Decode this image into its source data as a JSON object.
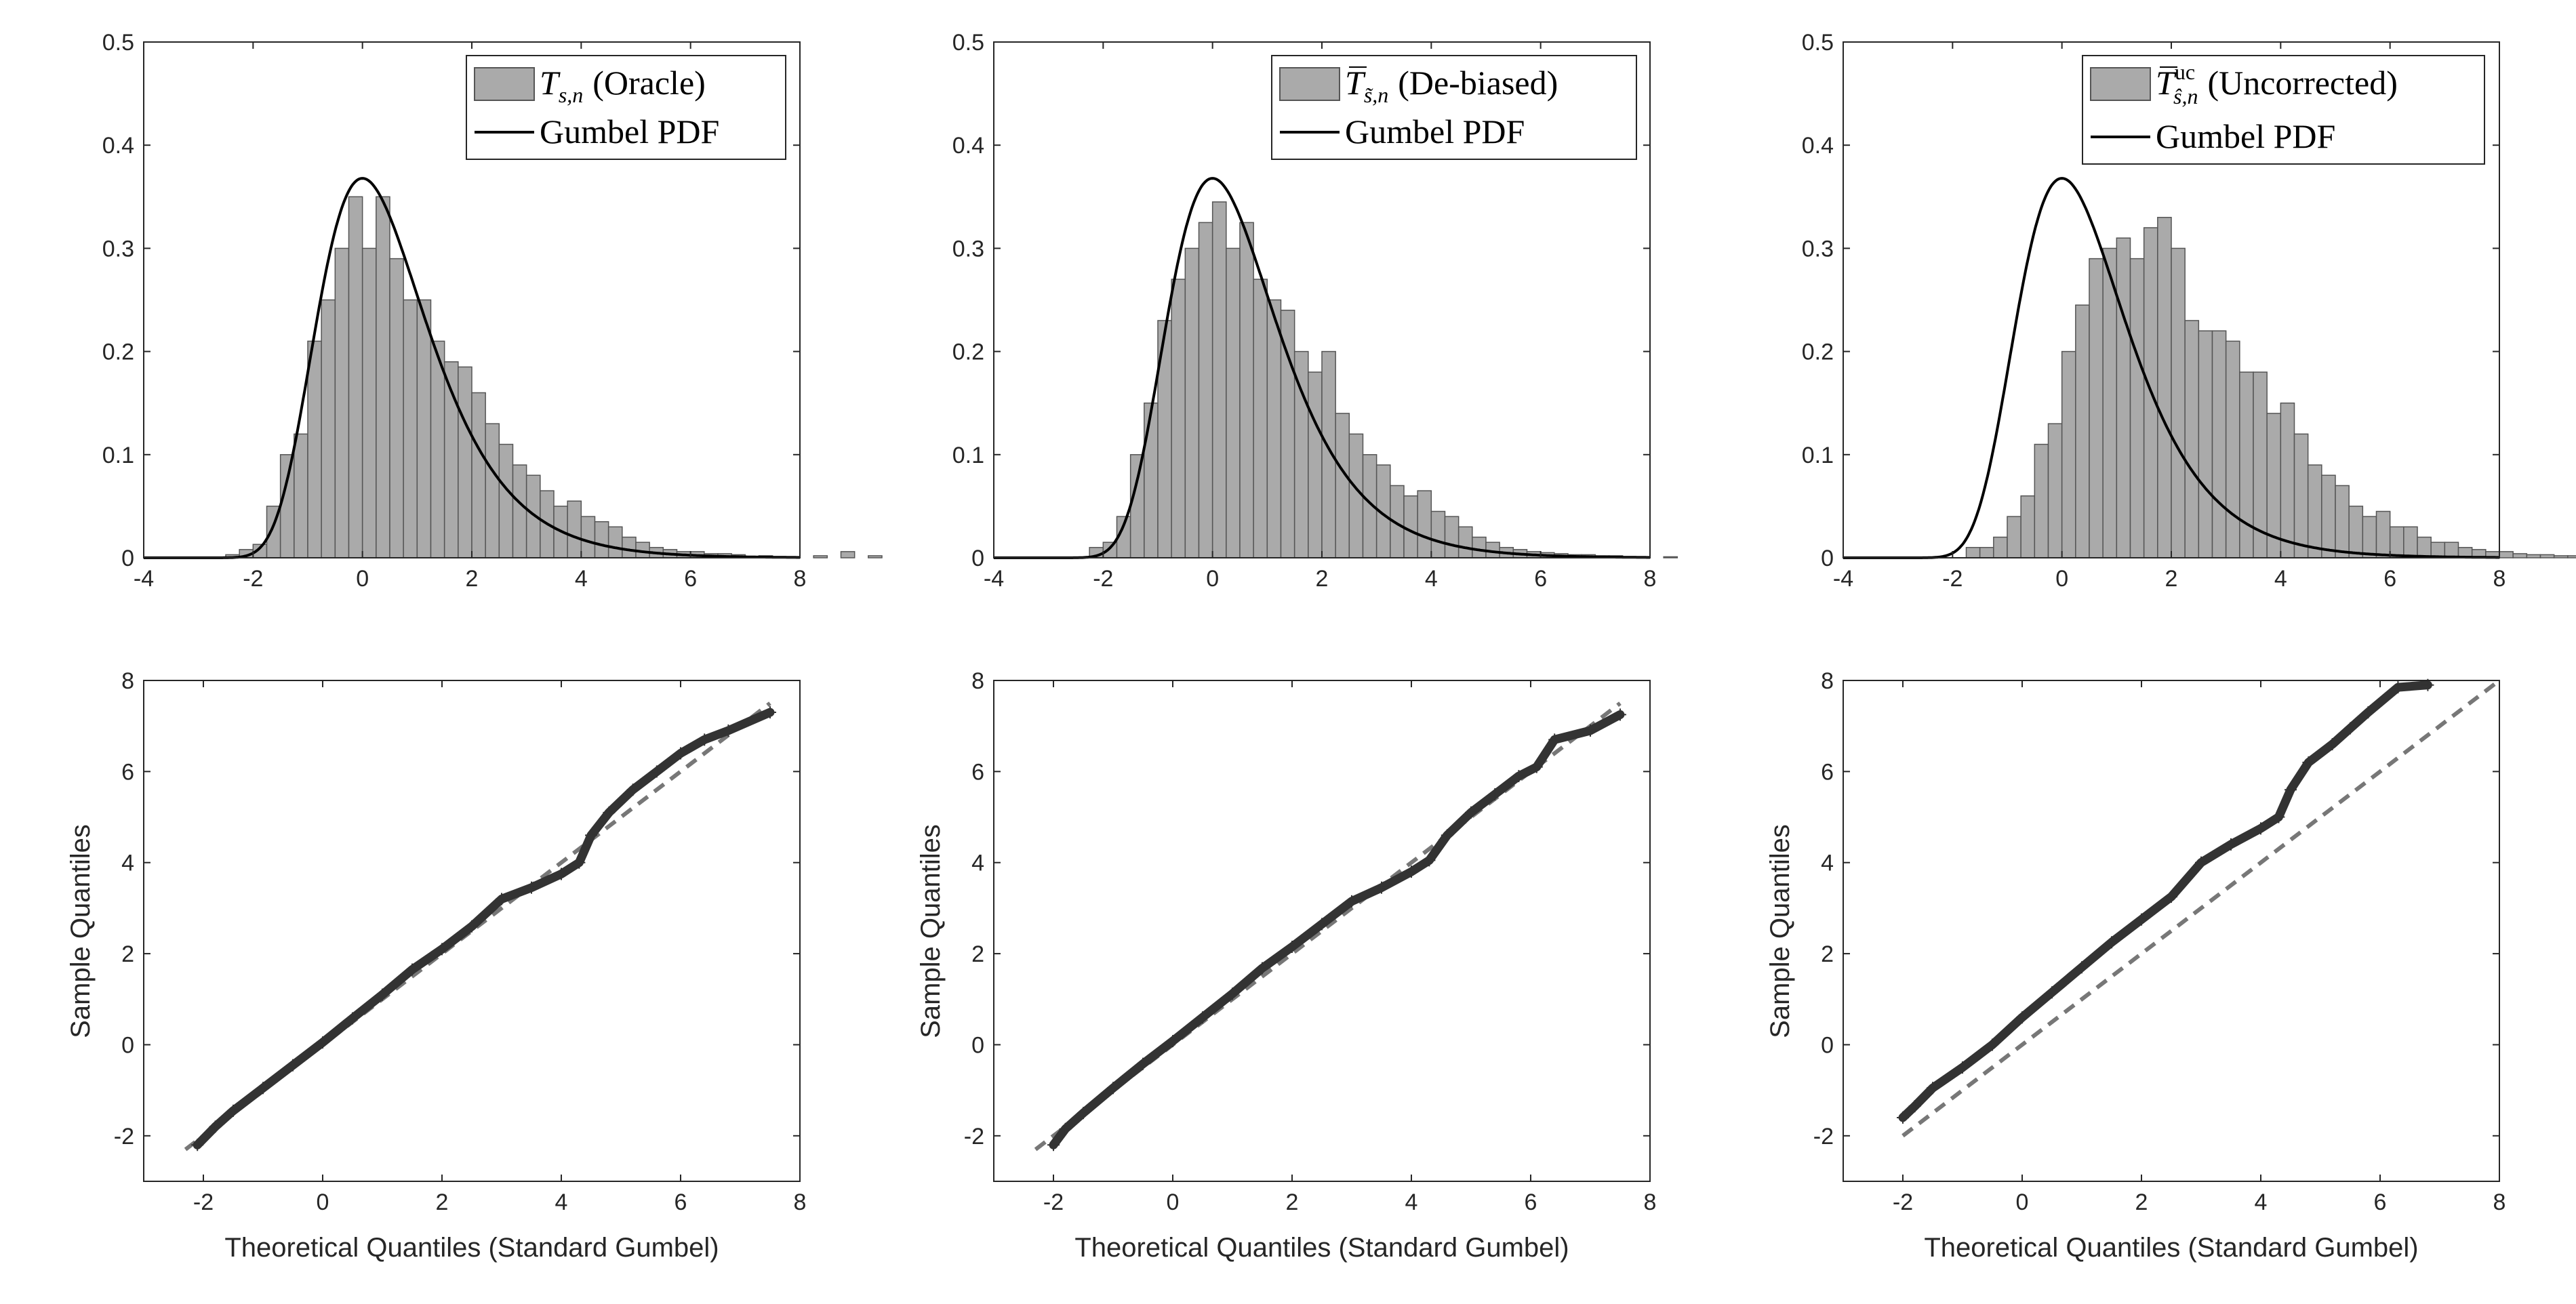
{
  "colors": {
    "bar_fill": "#aaaaaa",
    "bar_edge": "#555555",
    "pdf_line": "#000000",
    "ref_line": "#777777",
    "marker": "#333333",
    "axis": "#262626"
  },
  "panel_labels": {
    "oracle": {
      "main": "T",
      "sub": "s,n",
      "suffix": "(Oracle)"
    },
    "debiased": {
      "main": "T",
      "sub": "s̃,n",
      "suffix": "(De-biased)"
    },
    "uncorrected": {
      "main": "T",
      "sub": "ŝ,n",
      "sup": "uc",
      "suffix": "(Uncorrected)"
    },
    "pdf_label": "Gumbel PDF",
    "qq_xlabel": "Theoretical Quantiles (Standard Gumbel)",
    "qq_ylabel": "Sample Quantiles"
  },
  "chart_data": [
    {
      "id": "hist-oracle",
      "type": "bar",
      "title": "",
      "xlabel": "",
      "ylabel": "",
      "xlim": [
        -4,
        8
      ],
      "ylim": [
        0,
        0.5
      ],
      "xticks": [
        -4,
        -2,
        0,
        2,
        4,
        6,
        8
      ],
      "yticks": [
        0,
        0.1,
        0.2,
        0.3,
        0.4,
        0.5
      ],
      "bin_width": 0.25,
      "bin_start": -2.5,
      "values": [
        0.003,
        0.008,
        0.013,
        0.05,
        0.1,
        0.12,
        0.21,
        0.25,
        0.3,
        0.35,
        0.3,
        0.35,
        0.29,
        0.25,
        0.25,
        0.21,
        0.19,
        0.185,
        0.16,
        0.13,
        0.11,
        0.09,
        0.08,
        0.065,
        0.05,
        0.055,
        0.04,
        0.035,
        0.03,
        0.02,
        0.015,
        0.01,
        0.008,
        0.006,
        0.006,
        0.004,
        0.004,
        0.003,
        0.0,
        0.002,
        0.0,
        0.0,
        0.0,
        0.002,
        0.0,
        0.006,
        0.0,
        0.002
      ],
      "series": [
        {
          "name": "T_{s,n} (Oracle)"
        },
        {
          "name": "Gumbel PDF",
          "curve": "gumbel_pdf",
          "mu": 0,
          "beta": 1
        }
      ],
      "legend_position": "top-right",
      "grid": false
    },
    {
      "id": "hist-debiased",
      "type": "bar",
      "title": "",
      "xlabel": "",
      "ylabel": "",
      "xlim": [
        -4,
        8
      ],
      "ylim": [
        0,
        0.5
      ],
      "xticks": [
        -4,
        -2,
        0,
        2,
        4,
        6,
        8
      ],
      "yticks": [
        0,
        0.1,
        0.2,
        0.3,
        0.4,
        0.5
      ],
      "bin_width": 0.25,
      "bin_start": -2.25,
      "values": [
        0.01,
        0.015,
        0.04,
        0.1,
        0.15,
        0.23,
        0.27,
        0.3,
        0.325,
        0.345,
        0.3,
        0.325,
        0.27,
        0.25,
        0.24,
        0.2,
        0.18,
        0.2,
        0.14,
        0.12,
        0.1,
        0.09,
        0.07,
        0.06,
        0.065,
        0.045,
        0.04,
        0.03,
        0.02,
        0.015,
        0.01,
        0.008,
        0.006,
        0.005,
        0.004,
        0.003,
        0.003,
        0.002,
        0.002,
        0.001,
        0.001,
        0.0,
        0.001,
        0.0
      ],
      "series": [
        {
          "name": "T̃_{s̃,n} (De-biased)"
        },
        {
          "name": "Gumbel PDF",
          "curve": "gumbel_pdf",
          "mu": 0,
          "beta": 1
        }
      ],
      "legend_position": "top-right",
      "grid": false
    },
    {
      "id": "hist-uncorrected",
      "type": "bar",
      "title": "",
      "xlabel": "",
      "ylabel": "",
      "xlim": [
        -4,
        8
      ],
      "ylim": [
        0,
        0.5
      ],
      "xticks": [
        -4,
        -2,
        0,
        2,
        4,
        6,
        8
      ],
      "yticks": [
        0,
        0.1,
        0.2,
        0.3,
        0.4,
        0.5
      ],
      "bin_width": 0.25,
      "bin_start": -1.75,
      "values": [
        0.01,
        0.01,
        0.02,
        0.04,
        0.06,
        0.11,
        0.13,
        0.2,
        0.245,
        0.29,
        0.3,
        0.31,
        0.29,
        0.32,
        0.33,
        0.3,
        0.23,
        0.22,
        0.22,
        0.21,
        0.18,
        0.18,
        0.14,
        0.15,
        0.12,
        0.09,
        0.08,
        0.07,
        0.05,
        0.04,
        0.045,
        0.03,
        0.03,
        0.02,
        0.015,
        0.015,
        0.01,
        0.008,
        0.006,
        0.006,
        0.004,
        0.003,
        0.003,
        0.002,
        0.002,
        0.002,
        0.002,
        0.002
      ],
      "series": [
        {
          "name": "T̃^{uc}_{ŝ,n} (Uncorrected)"
        },
        {
          "name": "Gumbel PDF",
          "curve": "gumbel_pdf",
          "mu": 0,
          "beta": 1
        }
      ],
      "legend_position": "top-right",
      "grid": false
    },
    {
      "id": "qq-oracle",
      "type": "scatter",
      "title": "",
      "xlabel": "Theoretical Quantiles (Standard Gumbel)",
      "ylabel": "Sample Quantiles",
      "xlim": [
        -3,
        8
      ],
      "ylim": [
        -3,
        8
      ],
      "xticks": [
        -2,
        0,
        2,
        4,
        6,
        8
      ],
      "yticks": [
        -2,
        0,
        2,
        4,
        6,
        8
      ],
      "points": [
        [
          -2.1,
          -2.2
        ],
        [
          -1.8,
          -1.8
        ],
        [
          -1.5,
          -1.45
        ],
        [
          -1.0,
          -0.95
        ],
        [
          -0.5,
          -0.45
        ],
        [
          0.0,
          0.05
        ],
        [
          0.5,
          0.58
        ],
        [
          1.0,
          1.1
        ],
        [
          1.5,
          1.65
        ],
        [
          2.0,
          2.1
        ],
        [
          2.5,
          2.6
        ],
        [
          3.0,
          3.2
        ],
        [
          3.5,
          3.45
        ],
        [
          4.0,
          3.75
        ],
        [
          4.3,
          4.0
        ],
        [
          4.5,
          4.6
        ],
        [
          4.8,
          5.1
        ],
        [
          5.2,
          5.6
        ],
        [
          5.6,
          6.0
        ],
        [
          6.0,
          6.4
        ],
        [
          6.4,
          6.7
        ],
        [
          6.8,
          6.9
        ],
        [
          7.5,
          7.3
        ]
      ],
      "reference_line": {
        "from": [
          -2.3,
          -2.3
        ],
        "to": [
          7.5,
          7.5
        ]
      },
      "grid": false
    },
    {
      "id": "qq-debiased",
      "type": "scatter",
      "title": "",
      "xlabel": "Theoretical Quantiles (Standard Gumbel)",
      "ylabel": "Sample Quantiles",
      "xlim": [
        -3,
        8
      ],
      "ylim": [
        -3,
        8
      ],
      "xticks": [
        -2,
        0,
        2,
        4,
        6,
        8
      ],
      "yticks": [
        -2,
        0,
        2,
        4,
        6,
        8
      ],
      "points": [
        [
          -2.0,
          -2.2
        ],
        [
          -1.8,
          -1.85
        ],
        [
          -1.5,
          -1.5
        ],
        [
          -1.0,
          -0.95
        ],
        [
          -0.5,
          -0.42
        ],
        [
          0.0,
          0.08
        ],
        [
          0.5,
          0.6
        ],
        [
          1.0,
          1.12
        ],
        [
          1.5,
          1.68
        ],
        [
          2.0,
          2.15
        ],
        [
          2.5,
          2.65
        ],
        [
          3.0,
          3.15
        ],
        [
          3.5,
          3.45
        ],
        [
          4.0,
          3.8
        ],
        [
          4.3,
          4.05
        ],
        [
          4.6,
          4.6
        ],
        [
          5.0,
          5.1
        ],
        [
          5.4,
          5.5
        ],
        [
          5.8,
          5.9
        ],
        [
          6.1,
          6.1
        ],
        [
          6.4,
          6.7
        ],
        [
          7.0,
          6.9
        ],
        [
          7.5,
          7.25
        ]
      ],
      "reference_line": {
        "from": [
          -2.3,
          -2.3
        ],
        "to": [
          7.5,
          7.5
        ]
      },
      "grid": false
    },
    {
      "id": "qq-uncorrected",
      "type": "scatter",
      "title": "",
      "xlabel": "Theoretical Quantiles (Standard Gumbel)",
      "ylabel": "Sample Quantiles",
      "xlim": [
        -3,
        8
      ],
      "ylim": [
        -3,
        8
      ],
      "xticks": [
        -2,
        0,
        2,
        4,
        6,
        8
      ],
      "yticks": [
        -2,
        0,
        2,
        4,
        6,
        8
      ],
      "points": [
        [
          -2.0,
          -1.6
        ],
        [
          -1.8,
          -1.35
        ],
        [
          -1.5,
          -0.95
        ],
        [
          -1.0,
          -0.5
        ],
        [
          -0.5,
          0.0
        ],
        [
          0.0,
          0.6
        ],
        [
          0.5,
          1.15
        ],
        [
          1.0,
          1.7
        ],
        [
          1.5,
          2.25
        ],
        [
          2.0,
          2.75
        ],
        [
          2.5,
          3.25
        ],
        [
          3.0,
          4.0
        ],
        [
          3.5,
          4.4
        ],
        [
          4.0,
          4.75
        ],
        [
          4.3,
          5.0
        ],
        [
          4.5,
          5.6
        ],
        [
          4.8,
          6.2
        ],
        [
          5.2,
          6.6
        ],
        [
          5.5,
          6.95
        ],
        [
          5.8,
          7.3
        ],
        [
          6.3,
          7.85
        ],
        [
          6.8,
          7.9
        ]
      ],
      "reference_line": {
        "from": [
          -2.0,
          -2.0
        ],
        "to": [
          8.0,
          8.0
        ]
      },
      "grid": false
    }
  ]
}
